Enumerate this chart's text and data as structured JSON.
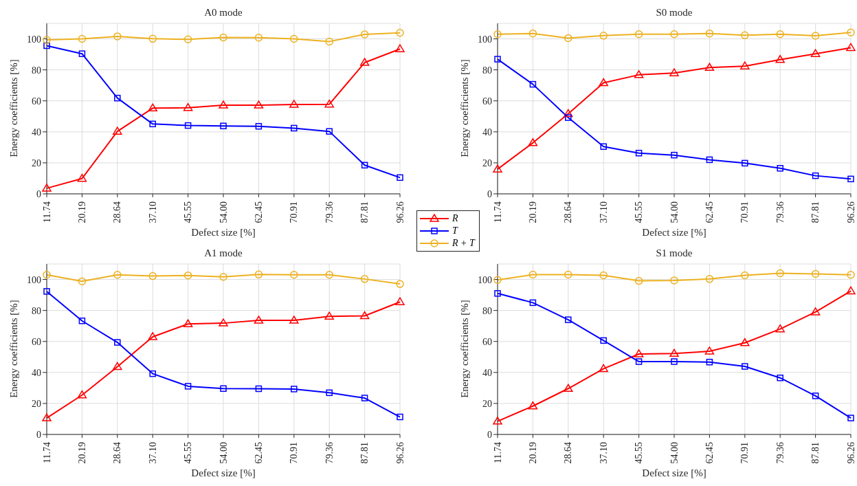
{
  "chart_data": [
    {
      "type": "line",
      "title": "A0 mode",
      "xlabel": "Defect size [%]",
      "ylabel": "Energy coefficients [%]",
      "categories": [
        "11.74",
        "20.19",
        "28.64",
        "37.10",
        "45.55",
        "54.00",
        "62.45",
        "70.91",
        "79.36",
        "87.81",
        "96.26"
      ],
      "ylim": [
        0,
        110
      ],
      "yticks": [
        0,
        20,
        40,
        60,
        80,
        100
      ],
      "grid": true,
      "legend": "bottom right",
      "series": [
        {
          "name": "R",
          "color": "#ff0000",
          "marker": "triangle",
          "values": [
            3.6,
            9.9,
            40.3,
            55.3,
            55.6,
            57.2,
            57.2,
            57.7,
            57.8,
            84.7,
            93.5
          ]
        },
        {
          "name": "T",
          "color": "#0000ff",
          "marker": "square",
          "values": [
            95.6,
            90.4,
            61.8,
            45.1,
            44.1,
            43.8,
            43.6,
            42.4,
            40.3,
            18.5,
            10.5
          ]
        },
        {
          "name": "R + T",
          "color": "#edb120",
          "marker": "circle",
          "values": [
            99.3,
            100,
            101.6,
            100.1,
            99.7,
            100.9,
            100.8,
            100,
            98.3,
            102.9,
            103.9
          ]
        }
      ]
    },
    {
      "type": "line",
      "title": "S0 mode",
      "xlabel": "Defect size [%]",
      "ylabel": "Energy coefficients [%]",
      "categories": [
        "11.74",
        "20.19",
        "28.64",
        "37.10",
        "45.55",
        "54.00",
        "62.45",
        "70.91",
        "79.36",
        "87.81",
        "96.26"
      ],
      "ylim": [
        0,
        110
      ],
      "yticks": [
        0,
        20,
        40,
        60,
        80,
        100
      ],
      "grid": true,
      "series": [
        {
          "color": "#ff0000",
          "marker": "triangle",
          "values": [
            15.9,
            32.9,
            51.7,
            71.6,
            76.8,
            78,
            81.5,
            82.4,
            86.6,
            90.4,
            94.3
          ]
        },
        {
          "color": "#0000ff",
          "marker": "square",
          "values": [
            86.9,
            70.7,
            49.2,
            30.5,
            26.3,
            25,
            22,
            19.8,
            16.5,
            11.7,
            9.6
          ]
        },
        {
          "color": "#edb120",
          "marker": "circle",
          "values": [
            103,
            103.5,
            100.5,
            102.1,
            103,
            103,
            103.5,
            102.3,
            103,
            102,
            104.1
          ]
        }
      ]
    },
    {
      "type": "line",
      "title": "A1 mode",
      "xlabel": "Defect size [%]",
      "ylabel": "Energy coefficients [%]",
      "categories": [
        "11.74",
        "20.19",
        "28.64",
        "37.10",
        "45.55",
        "54.00",
        "62.45",
        "70.91",
        "79.36",
        "87.81",
        "96.26"
      ],
      "ylim": [
        0,
        110
      ],
      "yticks": [
        0,
        20,
        40,
        60,
        80,
        100
      ],
      "grid": true,
      "series": [
        {
          "color": "#ff0000",
          "marker": "triangle",
          "values": [
            10.6,
            25.4,
            43.7,
            63,
            71.3,
            71.8,
            73.6,
            73.6,
            76.2,
            76.5,
            85.5
          ]
        },
        {
          "color": "#0000ff",
          "marker": "square",
          "values": [
            92.3,
            73.3,
            59.4,
            39.2,
            31.1,
            29.6,
            29.5,
            29.3,
            26.9,
            23.5,
            11.3
          ]
        },
        {
          "color": "#edb120",
          "marker": "circle",
          "values": [
            103,
            98.8,
            103,
            102.2,
            102.6,
            101.7,
            103.2,
            103,
            103,
            100.3,
            97.1
          ]
        }
      ]
    },
    {
      "type": "line",
      "title": "S1 mode",
      "xlabel": "Defect size [%]",
      "ylabel": "Energy coefficients [%]",
      "categories": [
        "11.74",
        "20.19",
        "28.64",
        "37.10",
        "45.55",
        "54.00",
        "62.45",
        "70.91",
        "79.36",
        "87.81",
        "96.26"
      ],
      "ylim": [
        0,
        110
      ],
      "yticks": [
        0,
        20,
        40,
        60,
        80,
        100
      ],
      "grid": true,
      "series": [
        {
          "color": "#ff0000",
          "marker": "triangle",
          "values": [
            8.5,
            18.3,
            29.6,
            42.4,
            51.9,
            52.2,
            53.7,
            59.1,
            68,
            79,
            92.5
          ]
        },
        {
          "color": "#0000ff",
          "marker": "square",
          "values": [
            91,
            85,
            74,
            60.6,
            47,
            47,
            46.7,
            43.9,
            36.5,
            24.9,
            10.6
          ]
        },
        {
          "color": "#edb120",
          "marker": "circle",
          "values": [
            99.7,
            103.1,
            103.1,
            102.7,
            99.1,
            99.4,
            100.3,
            102.7,
            104,
            103.6,
            103
          ]
        }
      ]
    }
  ]
}
